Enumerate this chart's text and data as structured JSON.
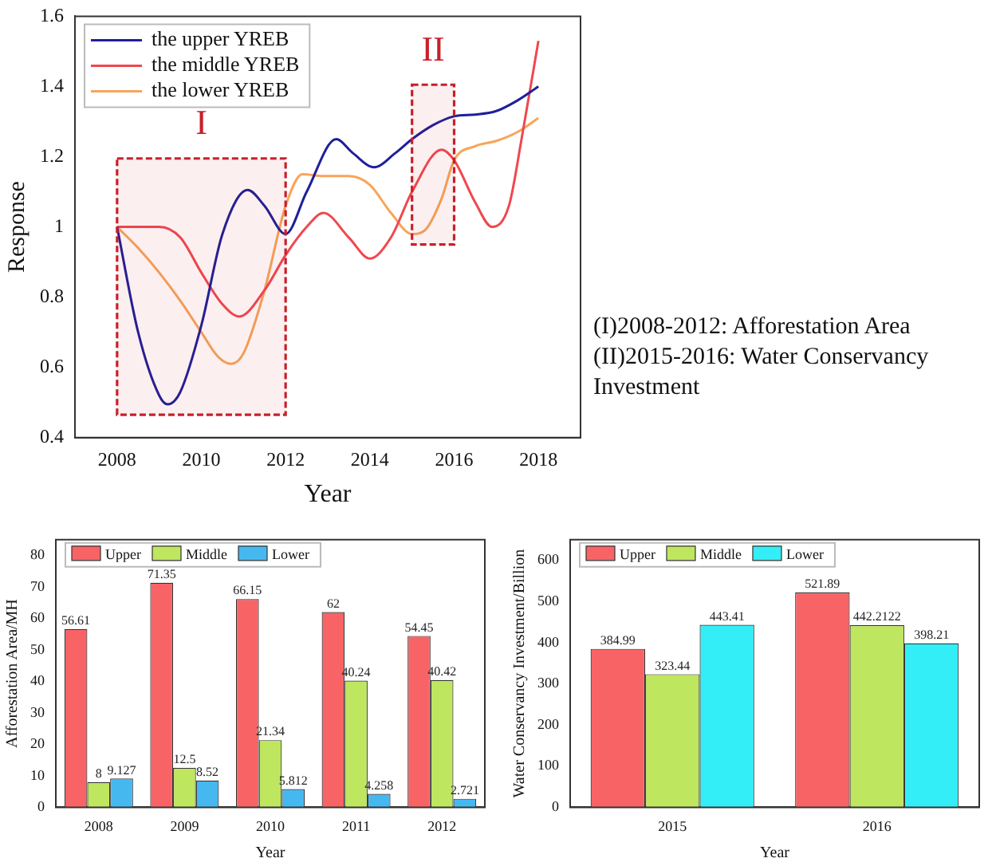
{
  "chart_data": [
    {
      "type": "line",
      "xlabel": "Year",
      "ylabel": "Response",
      "xlim": [
        2007,
        2019
      ],
      "xticks": [
        2008,
        2010,
        2012,
        2014,
        2016,
        2018
      ],
      "ylim": [
        0.4,
        1.6
      ],
      "yticks": [
        0.4,
        0.6,
        0.8,
        1.0,
        1.2,
        1.4,
        1.6
      ],
      "legend": "top left",
      "grid": false,
      "marker": "none",
      "line_style": "solid",
      "series": [
        {
          "name": "the upper YREB",
          "color": "#1f1f9a",
          "x": [
            2008,
            2008.5,
            2009,
            2009.2,
            2009.5,
            2010,
            2010.5,
            2011.1,
            2011.5,
            2012,
            2012.5,
            2013.2,
            2013.6,
            2014.1,
            2014.6,
            2015,
            2015.5,
            2016,
            2016.5,
            2017,
            2017.5,
            2018
          ],
          "values": [
            1.0,
            0.7,
            0.52,
            0.495,
            0.53,
            0.72,
            0.98,
            1.105,
            1.06,
            0.98,
            1.1,
            1.25,
            1.21,
            1.17,
            1.21,
            1.25,
            1.29,
            1.315,
            1.32,
            1.33,
            1.36,
            1.4
          ]
        },
        {
          "name": "the middle YREB",
          "color": "#f0474f",
          "x": [
            2008,
            2009,
            2009.5,
            2010,
            2010.5,
            2010.9,
            2011.5,
            2012,
            2012.5,
            2012.9,
            2013.5,
            2014,
            2014.5,
            2015,
            2015.7,
            2016,
            2016.5,
            2016.9,
            2017.3,
            2017.6,
            2018
          ],
          "values": [
            1.0,
            1.0,
            0.97,
            0.87,
            0.78,
            0.745,
            0.82,
            0.92,
            1.0,
            1.04,
            0.97,
            0.91,
            0.97,
            1.1,
            1.22,
            1.19,
            1.07,
            1.0,
            1.06,
            1.25,
            1.53
          ]
        },
        {
          "name": "the lower YREB",
          "color": "#f7a55a",
          "x": [
            2008,
            2008.5,
            2009,
            2009.5,
            2010,
            2010.4,
            2010.7,
            2011,
            2011.5,
            2012,
            2012.4,
            2012.9,
            2013.5,
            2014,
            2014.5,
            2015,
            2015.3,
            2015.7,
            2016,
            2016.5,
            2017,
            2017.5,
            2018
          ],
          "values": [
            1.0,
            0.94,
            0.87,
            0.79,
            0.7,
            0.63,
            0.61,
            0.64,
            0.82,
            1.06,
            1.15,
            1.145,
            1.145,
            1.12,
            1.04,
            0.98,
            0.99,
            1.08,
            1.19,
            1.23,
            1.245,
            1.27,
            1.31
          ]
        }
      ],
      "bands": [
        {
          "axis": "x",
          "from": 2008,
          "to": 2012,
          "label": "I",
          "color": "#c8202a"
        },
        {
          "axis": "x",
          "from": 2015,
          "to": 2016,
          "label": "II",
          "color": "#c8202a"
        }
      ],
      "annotations": [
        "(I)2008-2012: Afforestation Area",
        "(II)2015-2016: Water Conservancy Investment"
      ]
    },
    {
      "type": "bar",
      "xlabel": "Year",
      "ylabel": "Afforestation Area/MH",
      "categories": [
        "2008",
        "2009",
        "2010",
        "2011",
        "2012"
      ],
      "ylim": [
        0,
        85
      ],
      "yticks": [
        0,
        10,
        20,
        30,
        40,
        50,
        60,
        70,
        80
      ],
      "legend": "top left",
      "grid": false,
      "data_labels": true,
      "series": [
        {
          "name": "Upper",
          "color": "#f86466",
          "values": [
            56.61,
            71.35,
            66.15,
            62,
            54.45
          ]
        },
        {
          "name": "Middle",
          "color": "#bfe65f",
          "values": [
            8,
            12.5,
            21.34,
            40.24,
            40.42
          ]
        },
        {
          "name": "Lower",
          "color": "#46b8f0",
          "values": [
            9.127,
            8.52,
            5.812,
            4.258,
            2.721
          ]
        }
      ]
    },
    {
      "type": "bar",
      "xlabel": "Year",
      "ylabel": "Water Conservancy Investment/Billion",
      "categories": [
        "2015",
        "2016"
      ],
      "ylim": [
        0,
        650
      ],
      "yticks": [
        0,
        100,
        200,
        300,
        400,
        500,
        600
      ],
      "legend": "top left",
      "grid": false,
      "data_labels": true,
      "series": [
        {
          "name": "Upper",
          "color": "#f86466",
          "values": [
            384.99,
            521.89
          ]
        },
        {
          "name": "Middle",
          "color": "#bfe65f",
          "values": [
            323.44,
            442.2122
          ]
        },
        {
          "name": "Lower",
          "color": "#33eef6",
          "values": [
            443.41,
            398.21
          ]
        }
      ]
    }
  ]
}
